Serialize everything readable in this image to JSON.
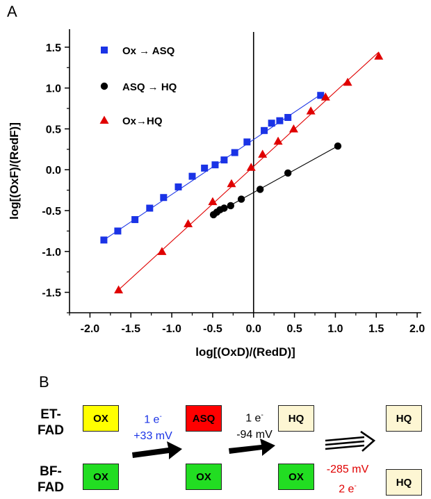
{
  "panel_a_label": "A",
  "panel_b_label": "B",
  "chart_data": {
    "type": "scatter",
    "title": "",
    "xlabel": "log[(OxD)/(RedD)]",
    "ylabel": "log[(OxF)/(RedF)]",
    "xlim": [
      -2.25,
      2.05
    ],
    "ylim": [
      -1.75,
      1.72
    ],
    "xticks": [
      -2.0,
      -1.5,
      -1.0,
      -0.5,
      0.0,
      0.5,
      1.0,
      1.5,
      2.0
    ],
    "yticks": [
      -1.5,
      -1.0,
      -0.5,
      0.0,
      0.5,
      1.0,
      1.5
    ],
    "tick_labels_x": [
      "-2.0",
      "-1.5",
      "-1.0",
      "-0.5",
      "0.0",
      "0.5",
      "1.0",
      "1.5",
      "2.0"
    ],
    "tick_labels_y": [
      "-1.5",
      "-1.0",
      "-0.5",
      "0.0",
      "0.5",
      "1.0",
      "1.5"
    ],
    "vertical_line_x": 0.0,
    "grid": false,
    "legend_position": "top-left",
    "series": [
      {
        "name": "Ox → ASQ",
        "marker": "square",
        "color": "#1a33e6",
        "x": [
          -1.83,
          -1.66,
          -1.45,
          -1.27,
          -1.1,
          -0.92,
          -0.75,
          -0.6,
          -0.47,
          -0.36,
          -0.23,
          -0.08,
          0.13,
          0.22,
          0.32,
          0.42,
          0.82
        ],
        "y": [
          -0.86,
          -0.75,
          -0.61,
          -0.47,
          -0.34,
          -0.21,
          -0.08,
          0.02,
          0.06,
          0.12,
          0.21,
          0.34,
          0.48,
          0.57,
          0.6,
          0.64,
          0.91
        ],
        "fit": [
          [
            -1.83,
            -0.86
          ],
          [
            0.82,
            0.92
          ]
        ]
      },
      {
        "name": "ASQ → HQ",
        "marker": "circle",
        "color": "#000000",
        "x": [
          -0.49,
          -0.45,
          -0.41,
          -0.36,
          -0.28,
          -0.15,
          0.08,
          0.42,
          1.03
        ],
        "y": [
          -0.55,
          -0.52,
          -0.49,
          -0.47,
          -0.44,
          -0.36,
          -0.24,
          -0.04,
          0.29
        ],
        "fit": [
          [
            -0.49,
            -0.55
          ],
          [
            1.03,
            0.29
          ]
        ]
      },
      {
        "name": "Ox→HQ",
        "marker": "triangle",
        "color": "#e00000",
        "x": [
          -1.65,
          -1.12,
          -0.8,
          -0.5,
          -0.27,
          -0.03,
          0.11,
          0.3,
          0.49,
          0.7,
          0.88,
          1.15,
          1.53
        ],
        "y": [
          -1.47,
          -1.0,
          -0.66,
          -0.39,
          -0.17,
          0.03,
          0.19,
          0.35,
          0.5,
          0.72,
          0.89,
          1.07,
          1.39
        ],
        "fit": [
          [
            -1.65,
            -1.47
          ],
          [
            1.53,
            1.44
          ]
        ]
      }
    ]
  },
  "scheme": {
    "row1_label": [
      "ET-",
      "FAD"
    ],
    "row2_label": [
      "BF-",
      "FAD"
    ],
    "boxes_row1": [
      {
        "text": "OX",
        "fill": "#ffff00"
      },
      {
        "text": "ASQ",
        "fill": "#ff0000"
      },
      {
        "text": "HQ",
        "fill": "#fdf6d3"
      },
      {
        "text": "HQ",
        "fill": "#fdf6d3"
      }
    ],
    "boxes_row2": [
      {
        "text": "OX",
        "fill": "#22dd22"
      },
      {
        "text": "OX",
        "fill": "#22dd22"
      },
      {
        "text": "OX",
        "fill": "#22dd22"
      },
      {
        "text": "HQ",
        "fill": "#fdf6d3"
      }
    ],
    "step1": {
      "electrons": "1 e",
      "superscript": "-",
      "potential": "+33 mV",
      "color": "#1a33e6"
    },
    "step2": {
      "electrons": "1 e",
      "superscript": "-",
      "potential": "-94 mV",
      "color": "#000000"
    },
    "step3": {
      "electrons": "2 e",
      "superscript": "-",
      "potential": "-285 mV",
      "color": "#e00000"
    }
  }
}
